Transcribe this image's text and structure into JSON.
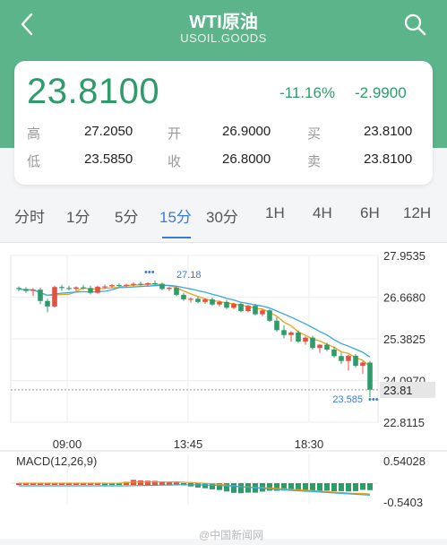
{
  "header": {
    "title": "WTI原油",
    "subtitle": "USOIL.GOODS",
    "back_icon": "chevron-left-icon",
    "search_icon": "search-icon",
    "bg_color": "#5cb48a"
  },
  "quote": {
    "price": "23.8100",
    "change_pct": "-11.16%",
    "change": "-2.9900",
    "color_down": "#2e9b6a",
    "rows": [
      [
        {
          "label": "高",
          "value": "27.2050"
        },
        {
          "label": "开",
          "value": "26.9000"
        },
        {
          "label": "买",
          "value": "23.8100"
        }
      ],
      [
        {
          "label": "低",
          "value": "23.5850"
        },
        {
          "label": "收",
          "value": "26.8000"
        },
        {
          "label": "卖",
          "value": "23.8100"
        }
      ]
    ]
  },
  "tabs": [
    "分时",
    "1分",
    "5分",
    "15分",
    "30分",
    "1H",
    "4H",
    "6H",
    "12H"
  ],
  "active_tab": "15分",
  "chart_data": {
    "type": "candlestick",
    "y_ticks": [
      "27.9535",
      "26.6680",
      "25.3825",
      "24.0970",
      "22.8115"
    ],
    "ylim": [
      22.8115,
      27.9535
    ],
    "x_ticks": [
      "09:00",
      "13:45",
      "18:30"
    ],
    "high_marker": "27.18",
    "low_marker": "23.585",
    "last_price": "23.81",
    "candles": [
      [
        26.95,
        27.0,
        26.85,
        26.92
      ],
      [
        26.92,
        26.98,
        26.8,
        26.86
      ],
      [
        26.86,
        26.95,
        26.7,
        26.9
      ],
      [
        26.9,
        26.96,
        26.45,
        26.55
      ],
      [
        26.55,
        26.62,
        26.2,
        26.38
      ],
      [
        26.38,
        27.02,
        26.35,
        26.98
      ],
      [
        26.98,
        27.05,
        26.86,
        26.95
      ],
      [
        26.95,
        27.02,
        26.88,
        26.92
      ],
      [
        26.92,
        27.0,
        26.86,
        26.97
      ],
      [
        26.97,
        27.04,
        26.9,
        26.95
      ],
      [
        26.95,
        27.02,
        26.75,
        26.8
      ],
      [
        26.8,
        27.02,
        26.78,
        26.99
      ],
      [
        26.99,
        27.06,
        26.92,
        27.0
      ],
      [
        27.0,
        27.07,
        26.95,
        27.04
      ],
      [
        27.04,
        27.1,
        26.98,
        27.02
      ],
      [
        27.02,
        27.08,
        26.96,
        27.05
      ],
      [
        27.05,
        27.12,
        27.0,
        27.08
      ],
      [
        27.08,
        27.14,
        27.02,
        27.06
      ],
      [
        27.06,
        27.12,
        27.0,
        27.1
      ],
      [
        27.1,
        27.18,
        27.04,
        27.08
      ],
      [
        27.08,
        27.12,
        26.88,
        26.92
      ],
      [
        26.92,
        27.0,
        26.86,
        26.96
      ],
      [
        26.96,
        26.98,
        26.7,
        26.74
      ],
      [
        26.74,
        26.8,
        26.55,
        26.6
      ],
      [
        26.6,
        26.66,
        26.5,
        26.62
      ],
      [
        26.62,
        26.68,
        26.48,
        26.52
      ],
      [
        26.52,
        26.64,
        26.46,
        26.6
      ],
      [
        26.6,
        26.66,
        26.4,
        26.44
      ],
      [
        26.44,
        26.56,
        26.38,
        26.52
      ],
      [
        26.52,
        26.58,
        26.3,
        26.34
      ],
      [
        26.34,
        26.5,
        26.3,
        26.46
      ],
      [
        26.46,
        26.5,
        26.2,
        26.24
      ],
      [
        26.24,
        26.44,
        26.2,
        26.4
      ],
      [
        26.4,
        26.46,
        26.1,
        26.14
      ],
      [
        26.14,
        26.3,
        26.08,
        26.26
      ],
      [
        26.26,
        26.3,
        25.9,
        25.94
      ],
      [
        25.94,
        26.05,
        25.6,
        25.65
      ],
      [
        25.65,
        25.8,
        25.4,
        25.5
      ],
      [
        25.5,
        25.62,
        25.3,
        25.58
      ],
      [
        25.58,
        25.64,
        25.25,
        25.3
      ],
      [
        25.3,
        25.46,
        25.2,
        25.42
      ],
      [
        25.42,
        25.48,
        25.05,
        25.1
      ],
      [
        25.1,
        25.22,
        24.95,
        25.2
      ],
      [
        25.2,
        25.26,
        25.0,
        25.05
      ],
      [
        25.05,
        25.15,
        24.8,
        24.85
      ],
      [
        24.85,
        24.95,
        24.6,
        24.7
      ],
      [
        24.7,
        24.9,
        24.4,
        24.86
      ],
      [
        24.86,
        24.92,
        24.5,
        24.55
      ],
      [
        24.55,
        24.7,
        24.3,
        24.65
      ],
      [
        24.65,
        24.7,
        23.585,
        23.81
      ]
    ],
    "macd_label": "MACD(12,26,9)",
    "macd_ticks": [
      "0.54028",
      "-0.5403"
    ],
    "macd_ylim": [
      -0.5403,
      0.54028
    ]
  },
  "watermark": "@中国新闻网"
}
